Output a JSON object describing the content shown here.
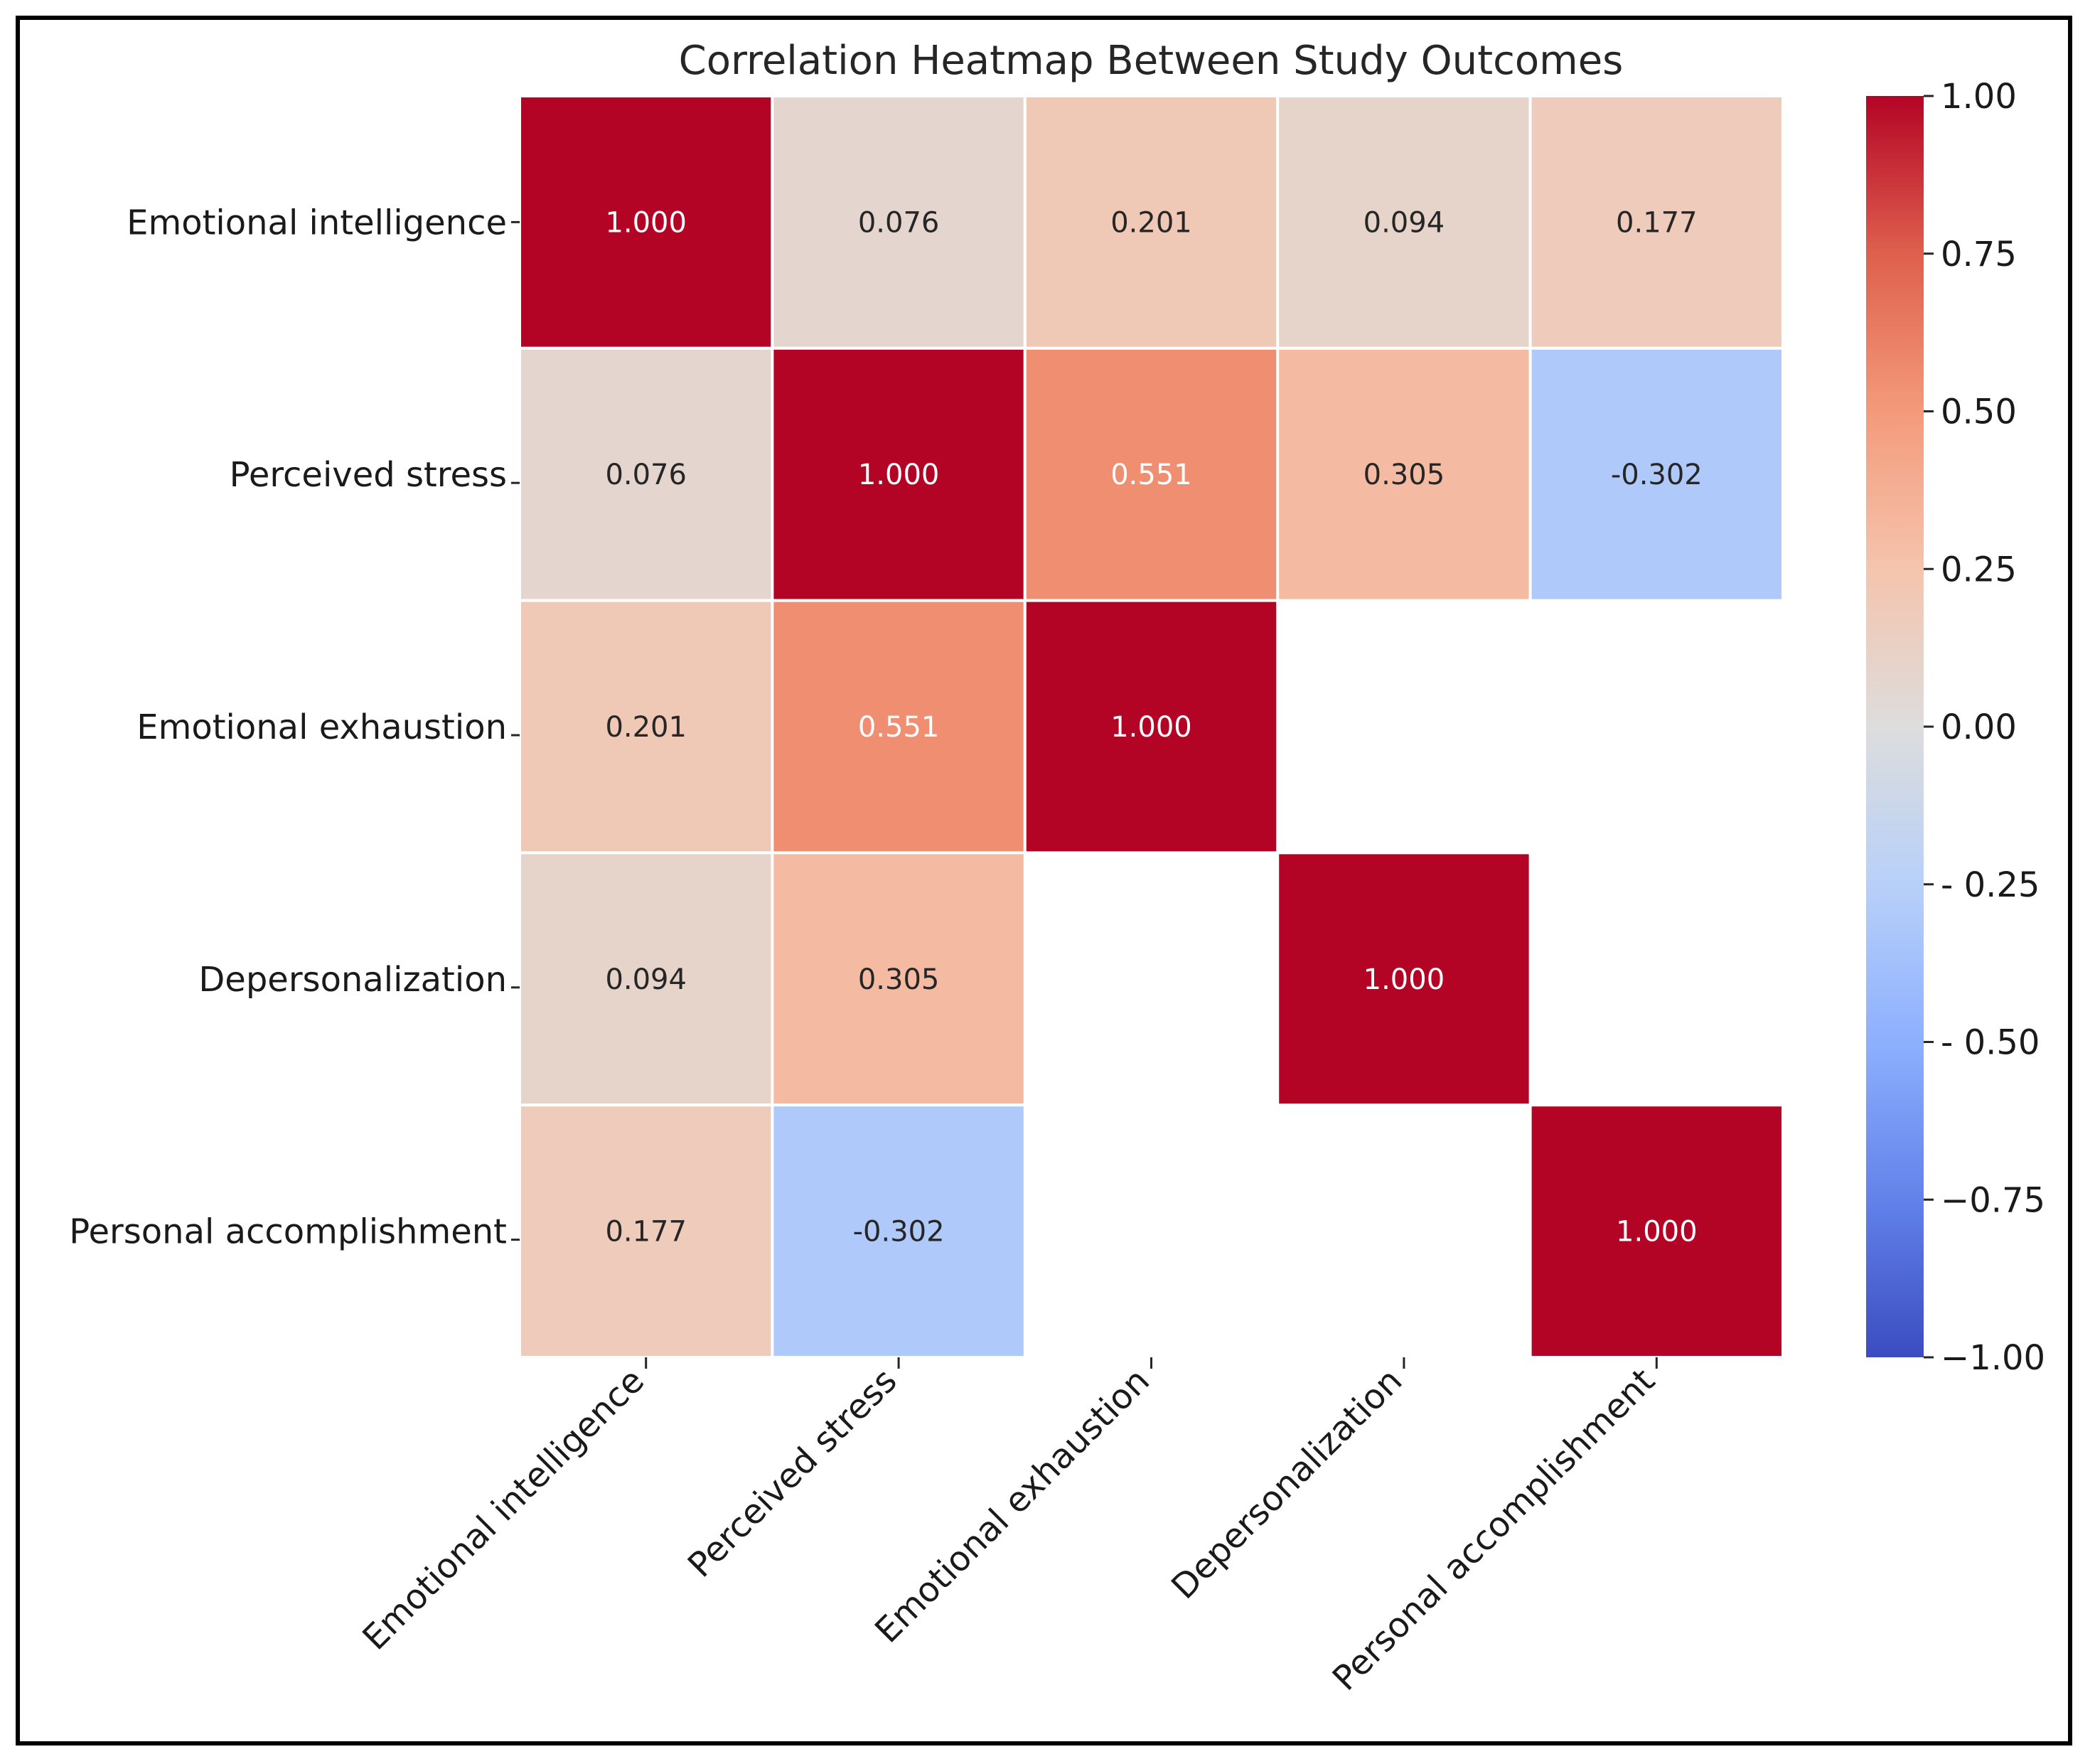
{
  "chart_data": {
    "type": "heatmap",
    "title": "Correlation Heatmap Between Study Outcomes",
    "variables": [
      "Emotional intelligence",
      "Perceived stress",
      "Emotional exhaustion",
      "Depersonalization",
      "Personal accomplishment"
    ],
    "matrix": [
      [
        1.0,
        0.076,
        0.201,
        0.094,
        0.177
      ],
      [
        0.076,
        1.0,
        0.551,
        0.305,
        -0.302
      ],
      [
        0.201,
        0.551,
        1.0,
        null,
        null
      ],
      [
        0.094,
        0.305,
        null,
        1.0,
        null
      ],
      [
        0.177,
        -0.302,
        null,
        null,
        1.0
      ]
    ],
    "value_format": "3 decimals",
    "colormap": "coolwarm",
    "vmin": -1.0,
    "vmax": 1.0,
    "colorbar_ticks": [
      "1.00",
      "0.75",
      "0.50",
      "0.25",
      "0.00",
      "- 0.25",
      "- 0.50",
      "−0.75",
      "−1.00"
    ],
    "colorbar_tick_values": [
      1.0,
      0.75,
      0.5,
      0.25,
      0.0,
      -0.25,
      -0.5,
      -0.75,
      -1.0
    ],
    "cell_border_color": "#ffffff",
    "frame_color": "#000000"
  }
}
